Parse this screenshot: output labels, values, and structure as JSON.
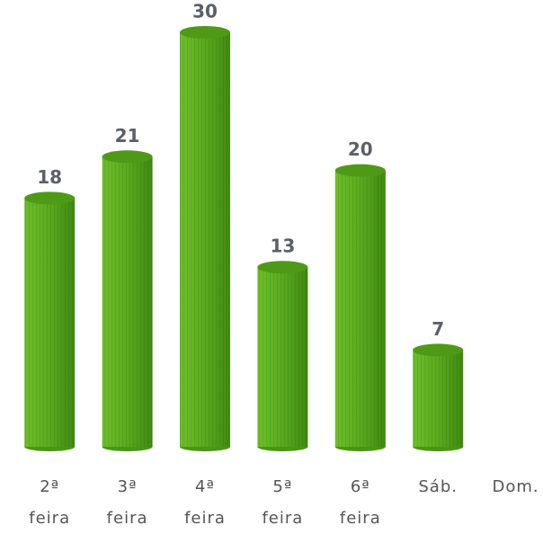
{
  "chart_data": {
    "type": "bar",
    "categories": [
      "2ª feira",
      "3ª feira",
      "4ª feira",
      "5ª feira",
      "6ª feira",
      "Sáb.",
      "Dom."
    ],
    "values": [
      18,
      21,
      30,
      13,
      20,
      7,
      null
    ],
    "color": "#5aaa1e"
  }
}
